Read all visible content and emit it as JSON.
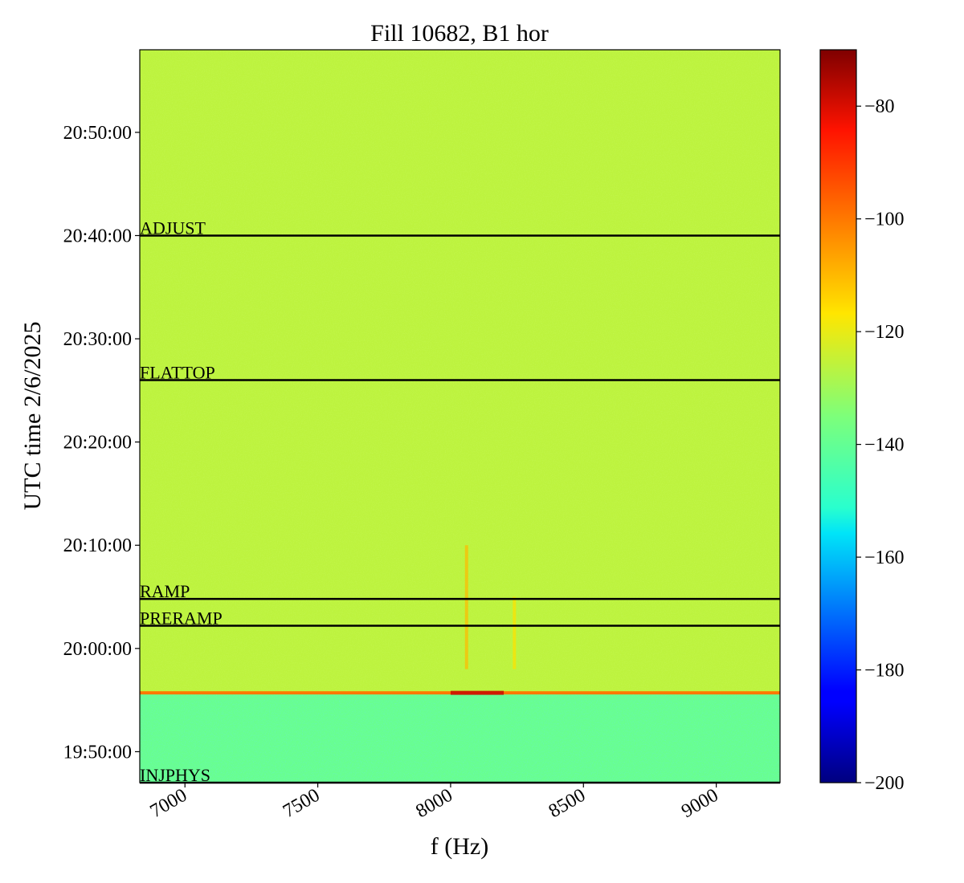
{
  "chart_data": {
    "type": "heatmap",
    "title": "Fill 10682, B1 hor",
    "xlabel": "f (Hz)",
    "ylabel": "UTC time 2/6/2025",
    "xlim": [
      6830,
      9240
    ],
    "ylim_minutes": [
      -13,
      58
    ],
    "x_ticks": [
      {
        "value": 7000,
        "label": "7000"
      },
      {
        "value": 7500,
        "label": "7500"
      },
      {
        "value": 8000,
        "label": "8000"
      },
      {
        "value": 8500,
        "label": "8500"
      },
      {
        "value": 9000,
        "label": "9000"
      }
    ],
    "y_ticks": [
      {
        "minutes": -10,
        "label": "19:50:00"
      },
      {
        "minutes": 0,
        "label": "20:00:00"
      },
      {
        "minutes": 10,
        "label": "20:10:00"
      },
      {
        "minutes": 20,
        "label": "20:20:00"
      },
      {
        "minutes": 30,
        "label": "20:30:00"
      },
      {
        "minutes": 40,
        "label": "20:40:00"
      },
      {
        "minutes": 50,
        "label": "20:50:00"
      }
    ],
    "phase_markers": [
      {
        "label": "INJPHYS",
        "minutes": -13
      },
      {
        "label": "PRERAMP",
        "minutes": 2.2
      },
      {
        "label": "RAMP",
        "minutes": 4.8
      },
      {
        "label": "FLATTOP",
        "minutes": 26
      },
      {
        "label": "ADJUST",
        "minutes": 40
      }
    ],
    "regions": [
      {
        "from_minutes": -13,
        "to_minutes": -4.3,
        "level_dB": -139
      },
      {
        "from_minutes": -4.3,
        "to_minutes": 58,
        "level_dB": -126
      }
    ],
    "features": [
      {
        "kind": "horizontal_line",
        "minutes": -4.3,
        "level_dB": -100,
        "peak_level_dB": -78
      },
      {
        "kind": "vertical_line",
        "frequency": 8060,
        "from_minutes": -2,
        "to_minutes": 10,
        "level_dB": -110
      },
      {
        "kind": "vertical_line",
        "frequency": 8240,
        "from_minutes": -2,
        "to_minutes": 5,
        "level_dB": -116
      }
    ],
    "colorbar": {
      "colormap": "jet",
      "range": [
        -200,
        -70
      ],
      "ticks": [
        {
          "value": -80,
          "label": "−80"
        },
        {
          "value": -100,
          "label": "−100"
        },
        {
          "value": -120,
          "label": "−120"
        },
        {
          "value": -140,
          "label": "−140"
        },
        {
          "value": -160,
          "label": "−160"
        },
        {
          "value": -180,
          "label": "−180"
        },
        {
          "value": -200,
          "label": "−200"
        }
      ]
    }
  }
}
